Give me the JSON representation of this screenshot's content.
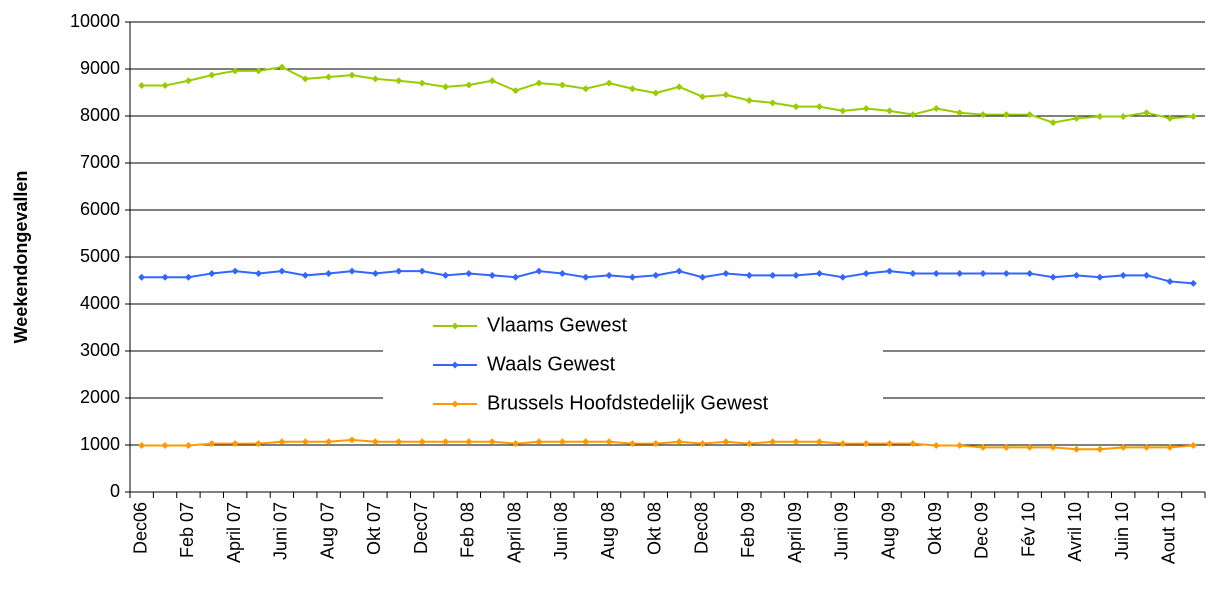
{
  "chart_data": {
    "type": "line",
    "y_label": "Weekendongevallen",
    "categories": [
      "Dec06",
      null,
      "Feb 07",
      null,
      "April 07",
      null,
      "Juni 07",
      null,
      "Aug 07",
      null,
      "Okt 07",
      null,
      "Dec07",
      null,
      "Feb 08",
      null,
      "April 08",
      null,
      "Juni 08",
      null,
      "Aug 08",
      null,
      "Okt 08",
      null,
      "Dec08",
      null,
      "Feb 09",
      null,
      "April 09",
      null,
      "Juni 09",
      null,
      "Aug 09",
      null,
      "Okt 09",
      null,
      "Dec 09",
      null,
      "Fév 10",
      null,
      "Avril 10",
      null,
      "Juin 10",
      null,
      "Aout 10",
      null
    ],
    "series": [
      {
        "name": "Vlaams Gewest",
        "color": "#99cc00",
        "values": [
          8650,
          8650,
          8750,
          8870,
          8960,
          8960,
          9040,
          8790,
          8830,
          8870,
          8790,
          8750,
          8700,
          8620,
          8660,
          8750,
          8540,
          8700,
          8660,
          8580,
          8700,
          8580,
          8490,
          8620,
          8410,
          8450,
          8330,
          8280,
          8200,
          8200,
          8110,
          8160,
          8110,
          8030,
          8160,
          8070,
          8030,
          8030,
          8030,
          7860,
          7950,
          7990,
          7990,
          8070,
          7950,
          7990
        ]
      },
      {
        "name": "Waals Gewest",
        "color": "#3366ff",
        "values": [
          4570,
          4570,
          4570,
          4650,
          4700,
          4650,
          4700,
          4610,
          4650,
          4700,
          4650,
          4700,
          4700,
          4610,
          4650,
          4610,
          4570,
          4700,
          4650,
          4570,
          4610,
          4570,
          4610,
          4700,
          4570,
          4650,
          4610,
          4610,
          4610,
          4650,
          4570,
          4650,
          4700,
          4650,
          4650,
          4650,
          4650,
          4650,
          4650,
          4570,
          4610,
          4570,
          4610,
          4610,
          4480,
          4440
        ]
      },
      {
        "name": "Brussels Hoofdstedelijk Gewest",
        "color": "#ff9900",
        "values": [
          990,
          990,
          990,
          1030,
          1030,
          1030,
          1070,
          1070,
          1070,
          1110,
          1070,
          1070,
          1070,
          1070,
          1070,
          1070,
          1030,
          1070,
          1070,
          1070,
          1070,
          1030,
          1030,
          1070,
          1030,
          1070,
          1030,
          1070,
          1070,
          1070,
          1030,
          1030,
          1030,
          1030,
          990,
          990,
          950,
          950,
          950,
          950,
          910,
          910,
          950,
          950,
          950,
          990
        ]
      }
    ],
    "ylim": [
      0,
      10000
    ],
    "yticks": [
      0,
      1000,
      2000,
      3000,
      4000,
      5000,
      6000,
      7000,
      8000,
      9000,
      10000
    ],
    "grid": true
  }
}
